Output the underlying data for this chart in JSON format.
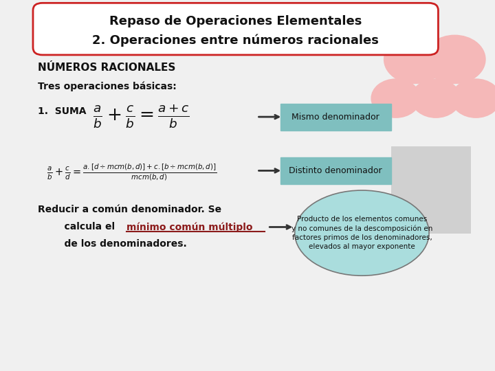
{
  "title_line1": "Repaso de Operaciones Elementales",
  "title_line2": "2. Operaciones entre números racionales",
  "section_title": "NÚMEROS RACIONALES",
  "subtitle": "Tres operaciones básicas:",
  "item1": "1.  SUMA",
  "box1_text": "Mismo denominador",
  "box2_text": "Distinto denominador",
  "text_reducir": "Reducir a común denominador. Se",
  "text_calcula": "    calcula el ",
  "text_mcm": "mínimo común múltiplo",
  "text_de": "    de los denominadores.",
  "bubble_text": "Producto de los elementos comunes\ny no comunes de la descomposición en\nfactores primos de los denominadores,\nelevados al mayor exponente",
  "bg_color": "#f0f0f0",
  "title_bg": "#ffffff",
  "title_border": "#cc2222",
  "box1_bg": "#7fbfbf",
  "box2_bg": "#7fbfbf",
  "bubble_bg": "#aadddd",
  "deco_color": "#f5b8b8",
  "mcm_color": "#8b1a1a",
  "text_color": "#111111",
  "arrow_color": "#333333"
}
